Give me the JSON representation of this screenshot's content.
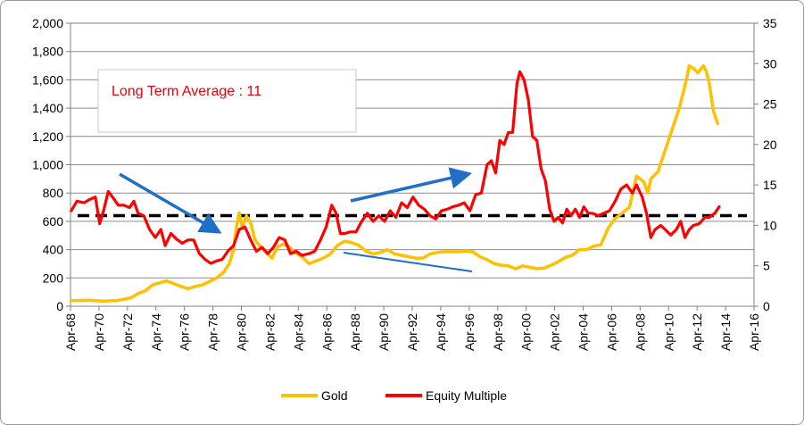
{
  "chart_data": {
    "type": "line",
    "title": "",
    "xlabel": "",
    "ylabel": "",
    "y_left_ticks": [
      "0",
      "200",
      "400",
      "600",
      "800",
      "1,000",
      "1,200",
      "1,400",
      "1,600",
      "1,800",
      "2,000"
    ],
    "y_right_ticks": [
      "0",
      "5",
      "10",
      "15",
      "20",
      "25",
      "30",
      "35"
    ],
    "x_ticks": [
      "Apr-68",
      "Apr-70",
      "Apr-72",
      "Apr-74",
      "Apr-76",
      "Apr-78",
      "Apr-80",
      "Apr-82",
      "Apr-84",
      "Apr-86",
      "Apr-88",
      "Apr-90",
      "Apr-92",
      "Apr-94",
      "Apr-96",
      "Apr-98",
      "Apr-00",
      "Apr-02",
      "Apr-04",
      "Apr-06",
      "Apr-08",
      "Apr-10",
      "Apr-12",
      "Apr-14",
      "Apr-16"
    ],
    "ylim_left": [
      0,
      2000
    ],
    "ylim_right": [
      0,
      35
    ],
    "xlim": [
      1968.25,
      2016.25
    ],
    "grid": "horizontal",
    "legend_position": "bottom",
    "annotation": "Long Term Average  : 11",
    "long_term_average": 11.2,
    "series": [
      {
        "name": "Gold",
        "axis": "left",
        "color": "#ffc000",
        "points": [
          [
            1968.3,
            40
          ],
          [
            1969.5,
            42
          ],
          [
            1970.5,
            36
          ],
          [
            1971.5,
            40
          ],
          [
            1972.5,
            60
          ],
          [
            1973.0,
            90
          ],
          [
            1973.5,
            110
          ],
          [
            1974.0,
            150
          ],
          [
            1974.5,
            165
          ],
          [
            1975.0,
            180
          ],
          [
            1975.5,
            160
          ],
          [
            1976.0,
            140
          ],
          [
            1976.5,
            125
          ],
          [
            1977.0,
            140
          ],
          [
            1977.5,
            150
          ],
          [
            1978.0,
            175
          ],
          [
            1978.5,
            200
          ],
          [
            1979.0,
            240
          ],
          [
            1979.4,
            300
          ],
          [
            1979.7,
            400
          ],
          [
            1979.9,
            560
          ],
          [
            1980.1,
            660
          ],
          [
            1980.3,
            560
          ],
          [
            1980.6,
            640
          ],
          [
            1980.9,
            590
          ],
          [
            1981.2,
            470
          ],
          [
            1981.6,
            420
          ],
          [
            1982.0,
            380
          ],
          [
            1982.4,
            340
          ],
          [
            1982.8,
            420
          ],
          [
            1983.2,
            440
          ],
          [
            1983.6,
            420
          ],
          [
            1984.0,
            380
          ],
          [
            1984.5,
            350
          ],
          [
            1985.0,
            300
          ],
          [
            1985.5,
            320
          ],
          [
            1986.0,
            340
          ],
          [
            1986.5,
            370
          ],
          [
            1987.0,
            430
          ],
          [
            1987.5,
            460
          ],
          [
            1988.0,
            450
          ],
          [
            1988.5,
            430
          ],
          [
            1989.0,
            390
          ],
          [
            1989.5,
            370
          ],
          [
            1990.0,
            380
          ],
          [
            1990.5,
            400
          ],
          [
            1991.0,
            370
          ],
          [
            1991.5,
            360
          ],
          [
            1992.0,
            350
          ],
          [
            1992.5,
            340
          ],
          [
            1993.0,
            340
          ],
          [
            1993.5,
            370
          ],
          [
            1994.0,
            380
          ],
          [
            1994.5,
            385
          ],
          [
            1995.0,
            385
          ],
          [
            1995.5,
            385
          ],
          [
            1996.0,
            390
          ],
          [
            1996.5,
            385
          ],
          [
            1997.0,
            350
          ],
          [
            1997.5,
            330
          ],
          [
            1998.0,
            300
          ],
          [
            1998.5,
            290
          ],
          [
            1999.0,
            285
          ],
          [
            1999.5,
            265
          ],
          [
            2000.0,
            285
          ],
          [
            2000.5,
            275
          ],
          [
            2001.0,
            265
          ],
          [
            2001.5,
            270
          ],
          [
            2002.0,
            290
          ],
          [
            2002.5,
            315
          ],
          [
            2003.0,
            345
          ],
          [
            2003.5,
            360
          ],
          [
            2004.0,
            400
          ],
          [
            2004.5,
            400
          ],
          [
            2005.0,
            425
          ],
          [
            2005.5,
            435
          ],
          [
            2006.0,
            550
          ],
          [
            2006.5,
            620
          ],
          [
            2007.0,
            660
          ],
          [
            2007.5,
            700
          ],
          [
            2008.0,
            920
          ],
          [
            2008.5,
            880
          ],
          [
            2008.8,
            800
          ],
          [
            2009.0,
            900
          ],
          [
            2009.5,
            950
          ],
          [
            2010.0,
            1100
          ],
          [
            2010.5,
            1250
          ],
          [
            2011.0,
            1400
          ],
          [
            2011.5,
            1600
          ],
          [
            2011.7,
            1700
          ],
          [
            2012.0,
            1680
          ],
          [
            2012.3,
            1650
          ],
          [
            2012.7,
            1700
          ],
          [
            2012.9,
            1660
          ],
          [
            2013.1,
            1580
          ],
          [
            2013.4,
            1380
          ],
          [
            2013.7,
            1290
          ]
        ]
      },
      {
        "name": "Equity Multiple",
        "axis": "right",
        "color": "#ff0000",
        "points": [
          [
            1968.3,
            11.8
          ],
          [
            1968.7,
            13
          ],
          [
            1969.2,
            12.8
          ],
          [
            1969.6,
            13.2
          ],
          [
            1970.0,
            13.5
          ],
          [
            1970.3,
            10.2
          ],
          [
            1970.6,
            12
          ],
          [
            1970.9,
            14.2
          ],
          [
            1971.2,
            13.5
          ],
          [
            1971.6,
            12.5
          ],
          [
            1972.0,
            12.5
          ],
          [
            1972.4,
            12.2
          ],
          [
            1972.7,
            13
          ],
          [
            1973.0,
            11.5
          ],
          [
            1973.4,
            11.2
          ],
          [
            1973.8,
            9.5
          ],
          [
            1974.2,
            8.5
          ],
          [
            1974.6,
            9.5
          ],
          [
            1974.9,
            7.5
          ],
          [
            1975.3,
            9
          ],
          [
            1975.7,
            8.3
          ],
          [
            1976.1,
            7.8
          ],
          [
            1976.5,
            8.2
          ],
          [
            1976.9,
            8.2
          ],
          [
            1977.3,
            6.5
          ],
          [
            1977.7,
            5.8
          ],
          [
            1978.1,
            5.3
          ],
          [
            1978.5,
            5.6
          ],
          [
            1978.9,
            5.8
          ],
          [
            1979.3,
            6.8
          ],
          [
            1979.7,
            7.5
          ],
          [
            1980.1,
            9.5
          ],
          [
            1980.5,
            9.8
          ],
          [
            1980.9,
            8.2
          ],
          [
            1981.3,
            6.8
          ],
          [
            1981.7,
            7.3
          ],
          [
            1982.1,
            6.5
          ],
          [
            1982.5,
            7.3
          ],
          [
            1982.9,
            8.5
          ],
          [
            1983.3,
            8.2
          ],
          [
            1983.7,
            6.5
          ],
          [
            1984.1,
            6.8
          ],
          [
            1984.5,
            6.3
          ],
          [
            1985.0,
            6.5
          ],
          [
            1985.4,
            6.8
          ],
          [
            1985.8,
            8.2
          ],
          [
            1986.2,
            9.8
          ],
          [
            1986.6,
            12.5
          ],
          [
            1986.9,
            11.5
          ],
          [
            1987.2,
            9
          ],
          [
            1987.5,
            9
          ],
          [
            1987.9,
            9.2
          ],
          [
            1988.3,
            9.2
          ],
          [
            1988.7,
            10.5
          ],
          [
            1989.1,
            11.5
          ],
          [
            1989.5,
            10.5
          ],
          [
            1989.9,
            11.2
          ],
          [
            1990.3,
            10.5
          ],
          [
            1990.7,
            11.8
          ],
          [
            1991.1,
            11
          ],
          [
            1991.5,
            12.8
          ],
          [
            1991.9,
            12.2
          ],
          [
            1992.3,
            13.5
          ],
          [
            1992.7,
            12.5
          ],
          [
            1993.1,
            12
          ],
          [
            1993.5,
            11.2
          ],
          [
            1993.9,
            10.8
          ],
          [
            1994.3,
            11.8
          ],
          [
            1994.7,
            12
          ],
          [
            1995.1,
            12.3
          ],
          [
            1995.5,
            12.5
          ],
          [
            1995.9,
            12.8
          ],
          [
            1996.3,
            11.8
          ],
          [
            1996.7,
            13.8
          ],
          [
            1997.1,
            14
          ],
          [
            1997.5,
            17.5
          ],
          [
            1997.8,
            18
          ],
          [
            1998.1,
            16.5
          ],
          [
            1998.4,
            20.5
          ],
          [
            1998.7,
            20
          ],
          [
            1999.0,
            21.5
          ],
          [
            1999.3,
            21.5
          ],
          [
            1999.6,
            27.5
          ],
          [
            1999.8,
            29
          ],
          [
            2000.1,
            28
          ],
          [
            2000.4,
            25.5
          ],
          [
            2000.7,
            21
          ],
          [
            2001.0,
            20.5
          ],
          [
            2001.3,
            17
          ],
          [
            2001.6,
            15.5
          ],
          [
            2001.9,
            12
          ],
          [
            2002.2,
            10.5
          ],
          [
            2002.5,
            11
          ],
          [
            2002.8,
            10.3
          ],
          [
            2003.1,
            12
          ],
          [
            2003.4,
            11.2
          ],
          [
            2003.7,
            12
          ],
          [
            2004.0,
            11
          ],
          [
            2004.3,
            12.3
          ],
          [
            2004.6,
            11.5
          ],
          [
            2004.9,
            11.5
          ],
          [
            2005.3,
            11.2
          ],
          [
            2005.7,
            11.5
          ],
          [
            2006.1,
            11.8
          ],
          [
            2006.5,
            13
          ],
          [
            2006.9,
            14.5
          ],
          [
            2007.3,
            15
          ],
          [
            2007.7,
            14
          ],
          [
            2008.0,
            15
          ],
          [
            2008.4,
            13.5
          ],
          [
            2008.7,
            11.5
          ],
          [
            2009.0,
            8.5
          ],
          [
            2009.3,
            9.5
          ],
          [
            2009.7,
            10
          ],
          [
            2010.0,
            9.5
          ],
          [
            2010.4,
            8.8
          ],
          [
            2010.8,
            9.5
          ],
          [
            2011.1,
            10.5
          ],
          [
            2011.4,
            8.5
          ],
          [
            2011.7,
            9.5
          ],
          [
            2012.0,
            10
          ],
          [
            2012.4,
            10.2
          ],
          [
            2012.8,
            11
          ],
          [
            2013.1,
            11
          ],
          [
            2013.5,
            11.5
          ],
          [
            2013.8,
            12.3
          ]
        ]
      }
    ]
  }
}
